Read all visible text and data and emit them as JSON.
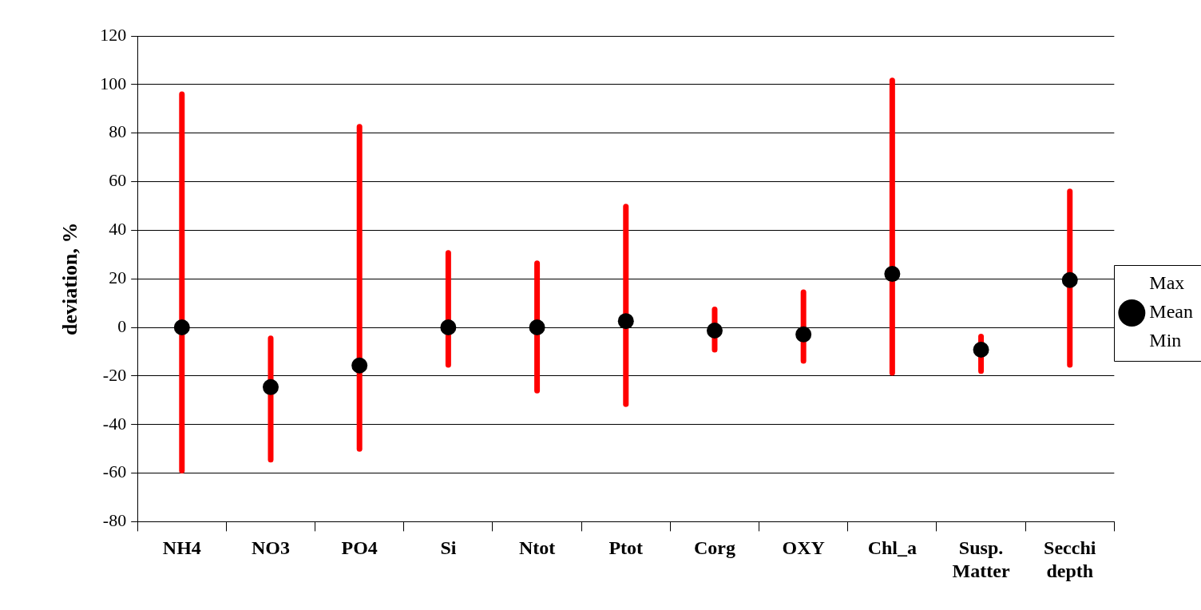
{
  "chart_data": {
    "type": "scatter",
    "ylabel": "deviation, %",
    "categories": [
      "NH4",
      "NO3",
      "PO4",
      "Si",
      "Ntot",
      "Ptot",
      "Corg",
      "OXY",
      "Chl_a",
      "Susp. Matter",
      "Secchi depth"
    ],
    "series": [
      {
        "name": "Max",
        "marker": "none",
        "values": [
          null,
          null,
          null,
          null,
          null,
          null,
          null,
          null,
          null,
          null,
          null
        ]
      },
      {
        "name": "Mean",
        "marker": "circle",
        "color": "#000000",
        "values": [
          0,
          -24.6,
          -15.7,
          0,
          0,
          2.6,
          -1.3,
          -2.9,
          22,
          -9.2,
          19.5
        ],
        "errors": [
          [
            -59,
            96
          ],
          [
            -54.5,
            -4.5
          ],
          [
            -50,
            82.6
          ],
          [
            -15.4,
            30.7
          ],
          [
            -26,
            26.4
          ],
          [
            -31.6,
            49.7
          ],
          [
            -9.2,
            7.4
          ],
          [
            -13.8,
            14.5
          ],
          [
            -18.7,
            101.7
          ],
          [
            -18,
            -3.8
          ],
          [
            -15.4,
            56
          ]
        ]
      },
      {
        "name": "Min",
        "marker": "none",
        "values": [
          null,
          null,
          null,
          null,
          null,
          null,
          null,
          null,
          null,
          null,
          null
        ]
      }
    ],
    "ylim": [
      -80,
      120
    ],
    "yticks": [
      -80,
      -60,
      -40,
      -20,
      0,
      20,
      40,
      60,
      80,
      100,
      120
    ],
    "grid": "y",
    "legend": "right"
  }
}
